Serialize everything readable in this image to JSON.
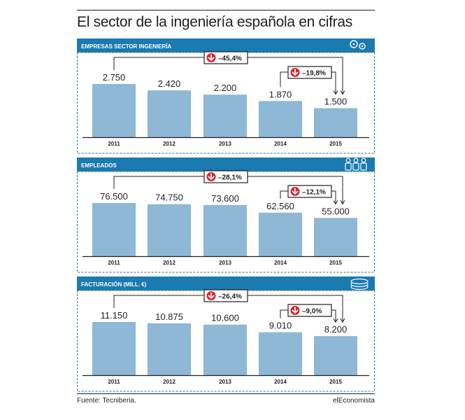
{
  "title": "El sector de la ingeniería española en cifras",
  "source": "Fuente: Tecniberia.",
  "brand": "elEconomista",
  "colors": {
    "header": "#1b7ab0",
    "bar": "#8eb8d5",
    "arrow": "#d7252f",
    "dashed": "#2a6f9e"
  },
  "chart_data": [
    {
      "type": "bar",
      "title": "EMPRESAS SECTOR INGENIERÍA",
      "icon": "gears-icon",
      "categories": [
        "2011",
        "2012",
        "2013",
        "2014",
        "2015"
      ],
      "values": [
        2750,
        2420,
        2200,
        1870,
        1500
      ],
      "value_labels": [
        "2.750",
        "2.420",
        "2.200",
        "1.870",
        "1.500"
      ],
      "changes": [
        {
          "from": "2011",
          "to": "2015",
          "label": "–45,4%"
        },
        {
          "from": "2014",
          "to": "2015",
          "label": "–19,8%"
        }
      ]
    },
    {
      "type": "bar",
      "title": "EMPLEADOS",
      "icon": "people-icon",
      "categories": [
        "2011",
        "2012",
        "2013",
        "2014",
        "2015"
      ],
      "values": [
        76500,
        74750,
        73600,
        62560,
        55000
      ],
      "value_labels": [
        "76.500",
        "74.750",
        "73.600",
        "62.560",
        "55.000"
      ],
      "changes": [
        {
          "from": "2011",
          "to": "2015",
          "label": "–28,1%"
        },
        {
          "from": "2014",
          "to": "2015",
          "label": "–12,1%"
        }
      ]
    },
    {
      "type": "bar",
      "title": "FACTURACIÓN (MILL. €)",
      "icon": "coins-icon",
      "categories": [
        "2011",
        "2012",
        "2013",
        "2014",
        "2015"
      ],
      "values": [
        11150,
        10875,
        10600,
        9010,
        8200
      ],
      "value_labels": [
        "11.150",
        "10.875",
        "10.600",
        "9.010",
        "8.200"
      ],
      "changes": [
        {
          "from": "2011",
          "to": "2015",
          "label": "–26,4%"
        },
        {
          "from": "2014",
          "to": "2015",
          "label": "–9,0%"
        }
      ]
    }
  ]
}
